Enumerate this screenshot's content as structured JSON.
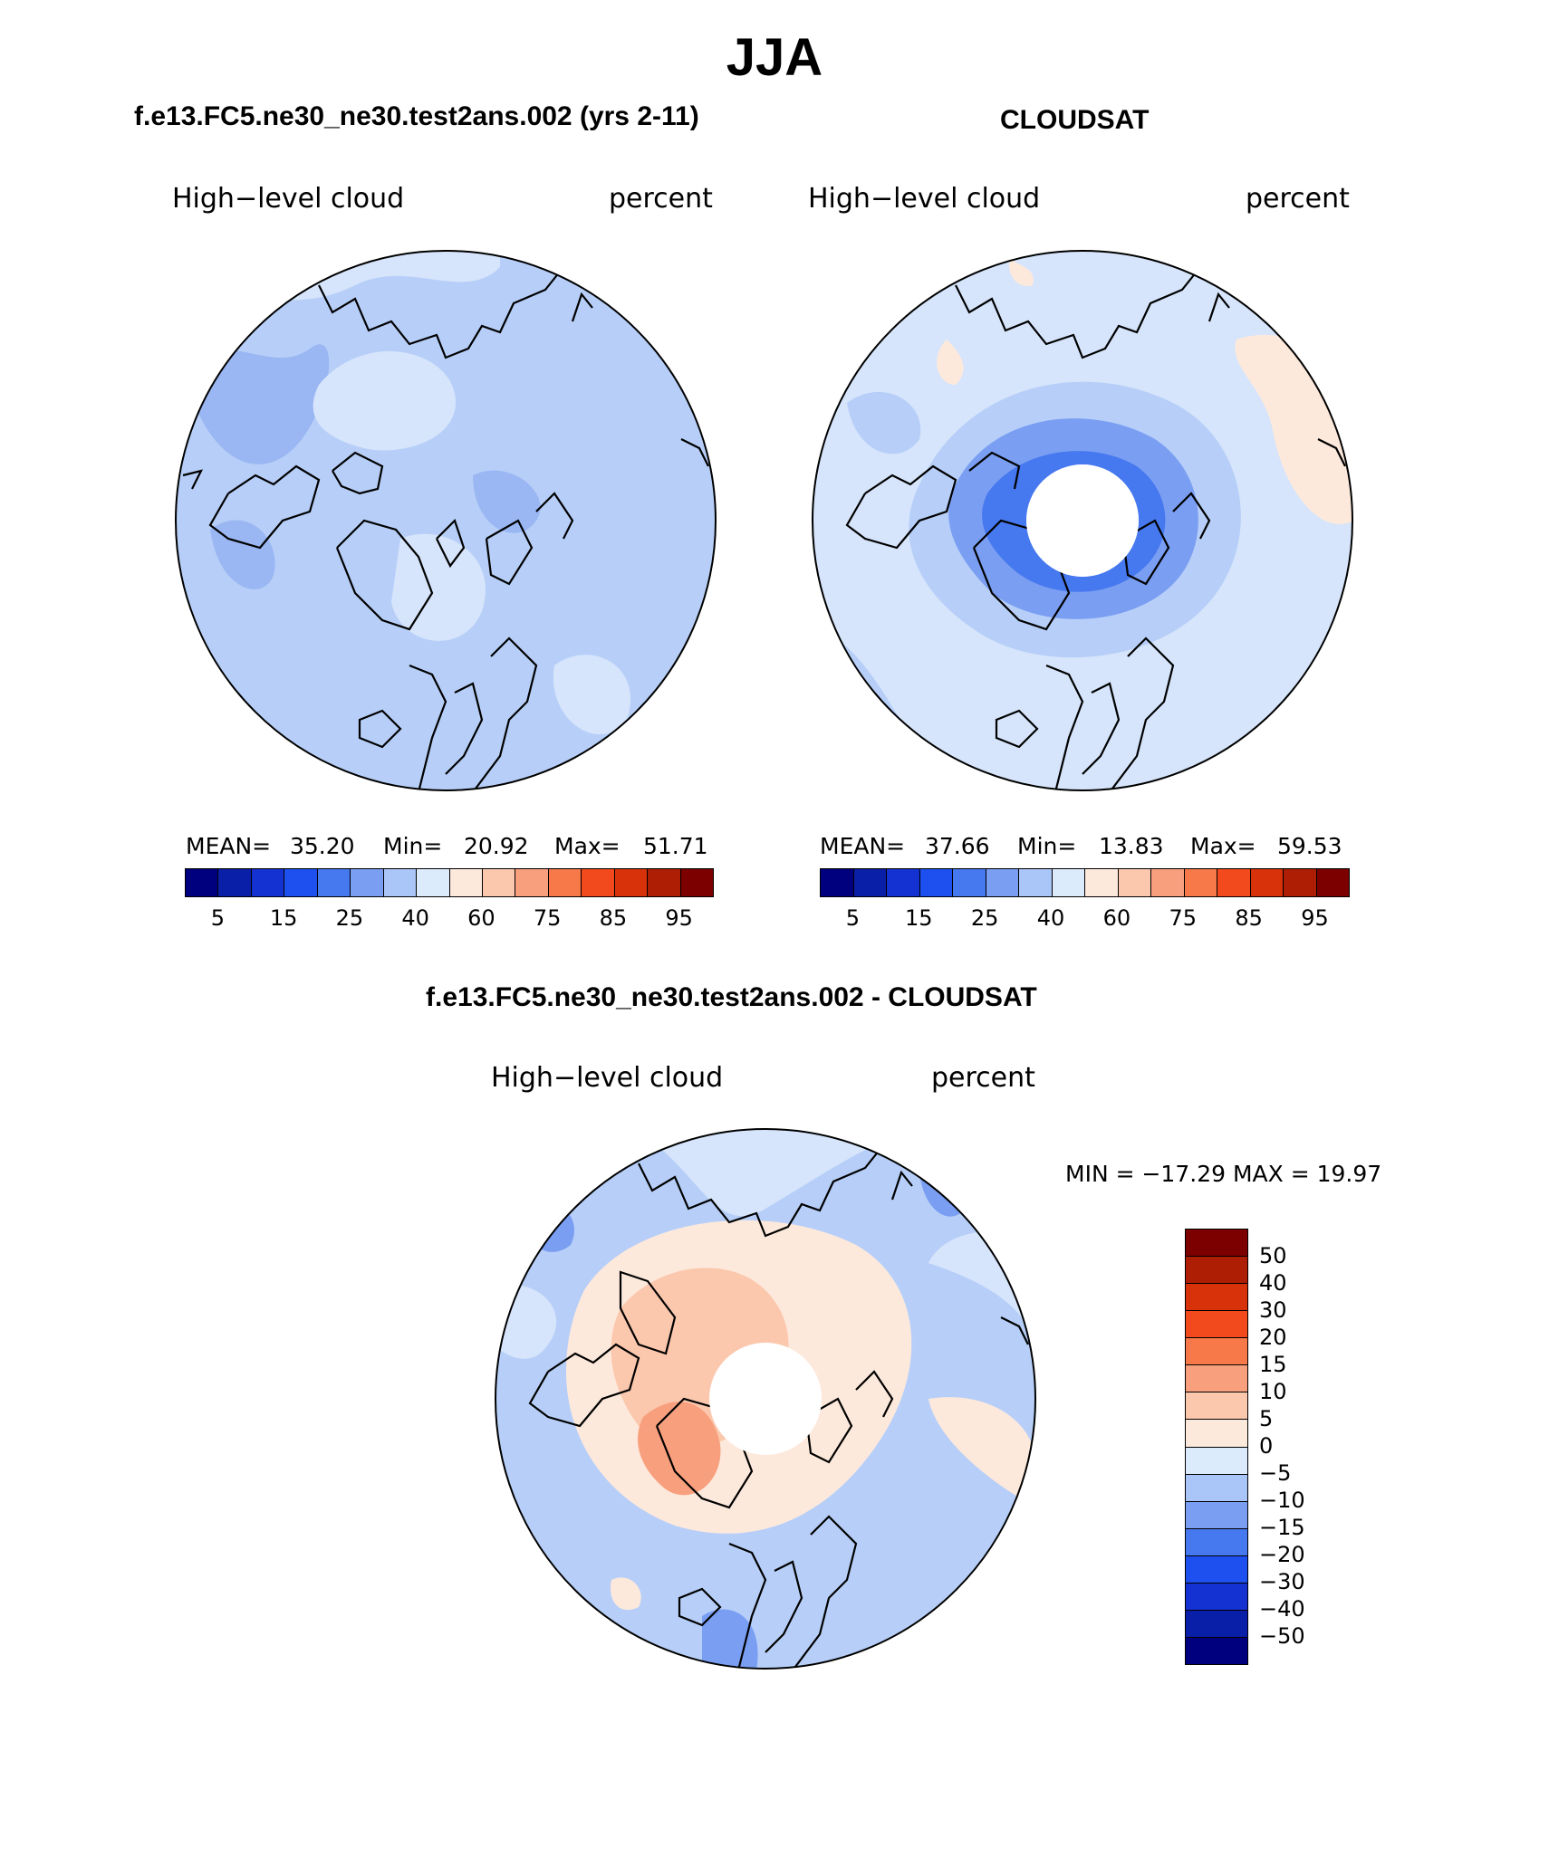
{
  "title": "JJA",
  "panels": {
    "model": {
      "case_title": "f.e13.FC5.ne30_ne30.test2ans.002 (yrs 2-11)",
      "variable": "High−level cloud",
      "units": "percent",
      "mean_label": "MEAN=",
      "mean": "35.20",
      "min_label": "Min=",
      "min": "20.92",
      "max_label": "Max=",
      "max": "51.71"
    },
    "obs": {
      "case_title": "CLOUDSAT",
      "variable": "High−level cloud",
      "units": "percent",
      "mean_label": "MEAN=",
      "mean": "37.66",
      "min_label": "Min=",
      "min": "13.83",
      "max_label": "Max=",
      "max": "59.53"
    },
    "diff": {
      "case_title": "f.e13.FC5.ne30_ne30.test2ans.002 - CLOUDSAT",
      "variable": "High−level cloud",
      "units": "percent",
      "minmax": "MIN = −17.29 MAX =   19.97"
    }
  },
  "colorbar_abs": {
    "colors": [
      "#00007f",
      "#0a1fa8",
      "#1432d2",
      "#1e50f0",
      "#4678ef",
      "#7a9ef2",
      "#aac6f8",
      "#dcebfc",
      "#fde9dc",
      "#fbc8ae",
      "#f8a07e",
      "#f77849",
      "#f24a1c",
      "#d8320a",
      "#ad1e05",
      "#7d0000"
    ],
    "labels": [
      "5",
      "15",
      "25",
      "40",
      "60",
      "75",
      "85",
      "95"
    ]
  },
  "colorbar_diff": {
    "colors": [
      "#7d0000",
      "#ad1e05",
      "#d8320a",
      "#f24a1c",
      "#f77849",
      "#f8a07e",
      "#fbc8ae",
      "#fde9dc",
      "#dcebfc",
      "#aac6f8",
      "#7a9ef2",
      "#4678ef",
      "#1e50f0",
      "#1432d2",
      "#0a1fa8",
      "#00007f"
    ],
    "labels": [
      "50",
      "40",
      "30",
      "20",
      "15",
      "10",
      "5",
      "0",
      "−5",
      "−10",
      "−15",
      "−20",
      "−30",
      "−40",
      "−50"
    ]
  }
}
